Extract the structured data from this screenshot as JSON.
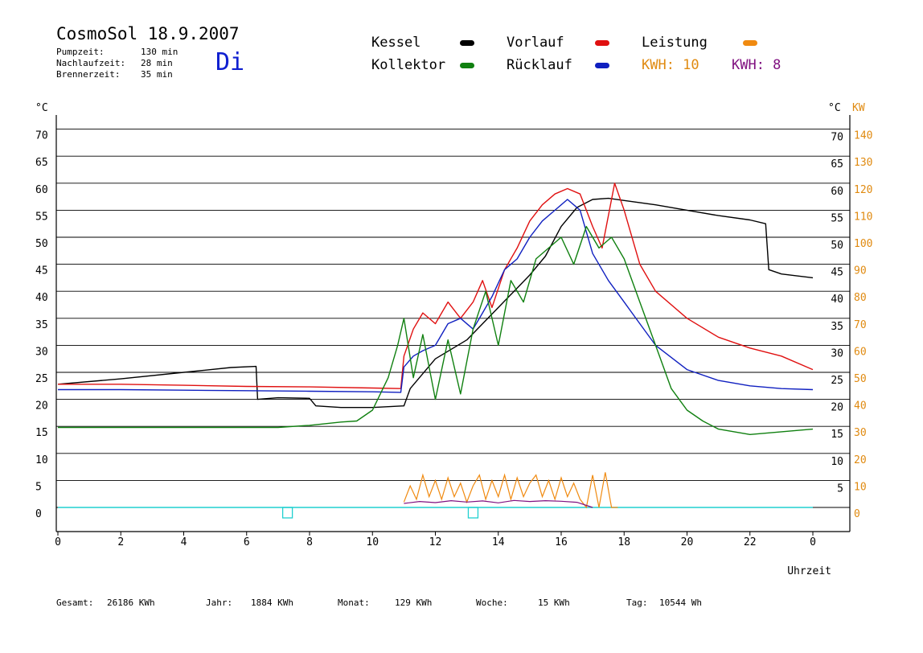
{
  "header": {
    "title": "CosmoSol 18.9.2007",
    "day": "Di",
    "info": [
      {
        "label": "Pumpzeit:",
        "value": "130 min"
      },
      {
        "label": "Nachlaufzeit:",
        "value": "28 min"
      },
      {
        "label": "Brennerzeit:",
        "value": "35 min"
      }
    ]
  },
  "legend": {
    "kessel": "Kessel",
    "vorlauf": "Vorlauf",
    "leistung": "Leistung",
    "kollektor": "Kollektor",
    "ruecklauf": "Rücklauf",
    "kwh1": "KWH: 10",
    "kwh2": "KWH: 8"
  },
  "colors": {
    "kessel": "#000000",
    "vorlauf": "#e01010",
    "leistung": "#f08a10",
    "kollektor": "#108010",
    "ruecklauf": "#1020c0",
    "kwh1": "#e08a10",
    "kwh2": "#801080",
    "pump": "#20d0d0"
  },
  "footer": {
    "gesamt_label": "Gesamt:",
    "gesamt_value": "26186 KWh",
    "jahr_label": "Jahr:",
    "jahr_value": "1884 KWh",
    "monat_label": "Monat:",
    "monat_value": "129 KWh",
    "woche_label": "Woche:",
    "woche_value": "15 KWh",
    "tag_label": "Tag:",
    "tag_value": "10544 Wh"
  },
  "chart_data": {
    "type": "line",
    "title": "CosmoSol 18.9.2007",
    "xlabel": "Uhrzeit",
    "ylabel_left": "°C",
    "ylabel_right_temp": "°C",
    "ylabel_right_power": "KW",
    "x_ticks": [
      "0",
      "2",
      "4",
      "6",
      "8",
      "10",
      "12",
      "14",
      "16",
      "18",
      "20",
      "22",
      "0"
    ],
    "y_ticks_left": [
      "0",
      "5",
      "10",
      "15",
      "20",
      "25",
      "30",
      "35",
      "40",
      "45",
      "50",
      "55",
      "60",
      "65",
      "70"
    ],
    "y_ticks_right_temp": [
      "5",
      "10",
      "15",
      "20",
      "25",
      "30",
      "35",
      "40",
      "45",
      "50",
      "55",
      "60",
      "65",
      "70"
    ],
    "y_ticks_right_power": [
      "0",
      "10",
      "20",
      "30",
      "40",
      "50",
      "60",
      "70",
      "80",
      "90",
      "100",
      "110",
      "120",
      "130",
      "140"
    ],
    "xlim": [
      0,
      24
    ],
    "ylim": [
      -2,
      72
    ],
    "series": [
      {
        "name": "Kessel",
        "key": "kessel",
        "x": [
          0,
          2,
          4,
          5.5,
          6.3,
          6.35,
          7,
          8,
          8.2,
          9,
          10,
          11,
          11.2,
          12,
          13,
          14,
          15,
          15.5,
          16,
          16.5,
          17,
          17.5,
          18,
          19,
          20,
          21,
          22,
          22.5,
          22.6,
          23,
          24
        ],
        "y": [
          22.8,
          23.8,
          25,
          25.9,
          26.1,
          20,
          20.3,
          20.2,
          18.8,
          18.5,
          18.5,
          18.8,
          22,
          27.5,
          31,
          37,
          43,
          46.5,
          52,
          55.5,
          57,
          57.2,
          56.8,
          56,
          55,
          54,
          53.2,
          52.5,
          44,
          43.2,
          42.5
        ]
      },
      {
        "name": "Vorlauf",
        "key": "vorlauf",
        "x": [
          0,
          2,
          4,
          6,
          8,
          10,
          10.9,
          11,
          11.3,
          11.6,
          12,
          12.4,
          12.8,
          13.2,
          13.5,
          13.8,
          14.2,
          14.6,
          15,
          15.4,
          15.8,
          16.2,
          16.6,
          17,
          17.3,
          17.7,
          18,
          18.5,
          19,
          20,
          21,
          22,
          23,
          24
        ],
        "y": [
          22.8,
          22.8,
          22.6,
          22.4,
          22.3,
          22.1,
          22,
          28,
          33,
          36,
          34,
          38,
          35,
          38,
          42,
          37,
          44,
          48,
          53,
          56,
          58,
          59,
          58,
          52,
          48,
          60,
          55,
          45,
          40,
          35,
          31.5,
          29.5,
          28,
          25.5
        ]
      },
      {
        "name": "Rücklauf",
        "key": "ruecklauf",
        "x": [
          0,
          2,
          4,
          6,
          8,
          10,
          10.9,
          11,
          11.3,
          11.6,
          12,
          12.4,
          12.8,
          13.2,
          13.5,
          13.8,
          14.2,
          14.6,
          15,
          15.4,
          15.8,
          16.2,
          16.6,
          17,
          17.5,
          18,
          18.5,
          19,
          20,
          21,
          22,
          23,
          24
        ],
        "y": [
          21.8,
          21.8,
          21.7,
          21.6,
          21.5,
          21.4,
          21.3,
          26,
          28,
          29,
          30,
          34,
          35,
          33,
          36,
          39,
          44,
          46,
          50,
          53,
          55,
          57,
          55,
          47,
          42,
          38,
          34,
          30,
          25.5,
          23.5,
          22.5,
          22,
          21.8
        ]
      },
      {
        "name": "Kollektor",
        "key": "kollektor",
        "x": [
          0,
          2,
          4,
          6,
          7,
          8,
          9,
          9.5,
          10,
          10.5,
          10.8,
          11,
          11.3,
          11.6,
          12,
          12.4,
          12.8,
          13.2,
          13.6,
          14,
          14.4,
          14.8,
          15.2,
          15.6,
          16,
          16.4,
          16.8,
          17.2,
          17.6,
          18,
          18.5,
          19,
          19.5,
          20,
          20.5,
          21,
          22,
          23,
          24
        ],
        "y": [
          14.8,
          14.8,
          14.8,
          14.8,
          14.8,
          15.2,
          15.8,
          16,
          18,
          24,
          30,
          35,
          24,
          32,
          20,
          31,
          21,
          33,
          40,
          30,
          42,
          38,
          46,
          48,
          50,
          45,
          52,
          48,
          50,
          46,
          38,
          30,
          22,
          18,
          16,
          14.5,
          13.5,
          14,
          14.5
        ]
      }
    ],
    "power_series": [
      {
        "name": "Leistung",
        "key": "leistung",
        "x": [
          11,
          11.2,
          11.4,
          11.6,
          11.8,
          12,
          12.2,
          12.4,
          12.6,
          12.8,
          13,
          13.2,
          13.4,
          13.6,
          13.8,
          14,
          14.2,
          14.4,
          14.6,
          14.8,
          15,
          15.2,
          15.4,
          15.6,
          15.8,
          16,
          16.2,
          16.4,
          16.6,
          16.8,
          17,
          17.2,
          17.4,
          17.6,
          17.8
        ],
        "y": [
          2,
          8,
          3,
          12,
          4,
          10,
          3,
          11,
          4,
          9,
          2,
          8,
          12,
          3,
          10,
          4,
          12,
          3,
          11,
          4,
          9,
          12,
          4,
          10,
          3,
          11,
          4,
          9,
          3,
          0,
          12,
          0,
          13,
          0,
          0
        ]
      },
      {
        "name": "KWH",
        "key": "kwh2",
        "x": [
          11,
          11.5,
          12,
          12.5,
          13,
          13.5,
          14,
          14.5,
          15,
          15.5,
          16,
          16.5,
          17
        ],
        "y": [
          1.5,
          2.2,
          1.8,
          2.5,
          2,
          2.4,
          1.7,
          2.6,
          2.2,
          2.5,
          2.3,
          1.9,
          0
        ]
      }
    ],
    "pump_markers_x": [
      7.3,
      13.2
    ],
    "grid": true
  }
}
